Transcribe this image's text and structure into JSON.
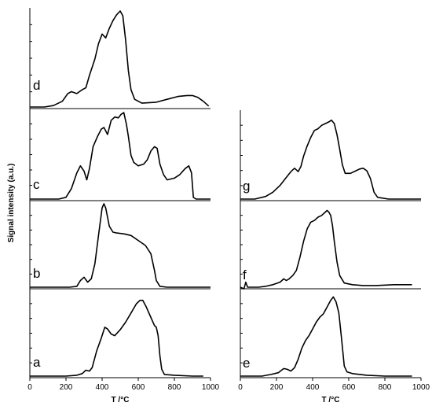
{
  "chart_data": {
    "type": "line",
    "ylabel": "Signal intensity (a.u.)",
    "panels": [
      {
        "column": "left",
        "label": "d",
        "xlim": [
          0,
          1000
        ],
        "points": [
          [
            0,
            0
          ],
          [
            80,
            0
          ],
          [
            130,
            1.5
          ],
          [
            180,
            6
          ],
          [
            210,
            14
          ],
          [
            230,
            16
          ],
          [
            260,
            14
          ],
          [
            290,
            18
          ],
          [
            310,
            20
          ],
          [
            330,
            33
          ],
          [
            360,
            50
          ],
          [
            380,
            66
          ],
          [
            400,
            76
          ],
          [
            420,
            72
          ],
          [
            440,
            82
          ],
          [
            460,
            90
          ],
          [
            480,
            96
          ],
          [
            500,
            100
          ],
          [
            515,
            95
          ],
          [
            530,
            70
          ],
          [
            545,
            38
          ],
          [
            560,
            18
          ],
          [
            580,
            8
          ],
          [
            620,
            4
          ],
          [
            700,
            5
          ],
          [
            760,
            8
          ],
          [
            820,
            11
          ],
          [
            870,
            12
          ],
          [
            900,
            12
          ],
          [
            930,
            10
          ],
          [
            960,
            6
          ],
          [
            990,
            1
          ]
        ]
      },
      {
        "column": "left",
        "label": "c",
        "xlim": [
          0,
          1000
        ],
        "points": [
          [
            0,
            0
          ],
          [
            160,
            0
          ],
          [
            200,
            2
          ],
          [
            230,
            12
          ],
          [
            260,
            30
          ],
          [
            280,
            38
          ],
          [
            300,
            32
          ],
          [
            315,
            22
          ],
          [
            330,
            35
          ],
          [
            350,
            60
          ],
          [
            375,
            72
          ],
          [
            395,
            80
          ],
          [
            410,
            82
          ],
          [
            430,
            74
          ],
          [
            450,
            90
          ],
          [
            470,
            94
          ],
          [
            490,
            93
          ],
          [
            505,
            97
          ],
          [
            520,
            99
          ],
          [
            535,
            85
          ],
          [
            545,
            72
          ],
          [
            560,
            50
          ],
          [
            575,
            42
          ],
          [
            600,
            38
          ],
          [
            630,
            40
          ],
          [
            650,
            45
          ],
          [
            670,
            55
          ],
          [
            690,
            60
          ],
          [
            705,
            58
          ],
          [
            720,
            40
          ],
          [
            740,
            28
          ],
          [
            760,
            22
          ],
          [
            800,
            24
          ],
          [
            830,
            28
          ],
          [
            860,
            35
          ],
          [
            880,
            38
          ],
          [
            895,
            30
          ],
          [
            905,
            2
          ],
          [
            920,
            0
          ],
          [
            1000,
            0
          ]
        ]
      },
      {
        "column": "left",
        "label": "b",
        "xlim": [
          0,
          1000
        ],
        "points": [
          [
            0,
            0
          ],
          [
            220,
            0
          ],
          [
            260,
            1
          ],
          [
            280,
            8
          ],
          [
            300,
            12
          ],
          [
            320,
            6
          ],
          [
            340,
            10
          ],
          [
            360,
            28
          ],
          [
            380,
            62
          ],
          [
            400,
            95
          ],
          [
            410,
            100
          ],
          [
            420,
            95
          ],
          [
            440,
            73
          ],
          [
            460,
            66
          ],
          [
            480,
            65
          ],
          [
            520,
            64
          ],
          [
            560,
            62
          ],
          [
            600,
            56
          ],
          [
            640,
            50
          ],
          [
            670,
            40
          ],
          [
            690,
            20
          ],
          [
            700,
            8
          ],
          [
            720,
            1
          ],
          [
            760,
            0
          ],
          [
            1000,
            0
          ]
        ]
      },
      {
        "column": "left",
        "label": "a",
        "xlim": [
          0,
          1000
        ],
        "points": [
          [
            0,
            0
          ],
          [
            200,
            0
          ],
          [
            260,
            1
          ],
          [
            290,
            3
          ],
          [
            310,
            7
          ],
          [
            330,
            6
          ],
          [
            345,
            10
          ],
          [
            370,
            30
          ],
          [
            395,
            45
          ],
          [
            415,
            58
          ],
          [
            430,
            56
          ],
          [
            450,
            50
          ],
          [
            470,
            48
          ],
          [
            500,
            55
          ],
          [
            530,
            64
          ],
          [
            560,
            75
          ],
          [
            590,
            86
          ],
          [
            610,
            90
          ],
          [
            625,
            90
          ],
          [
            645,
            82
          ],
          [
            665,
            72
          ],
          [
            690,
            60
          ],
          [
            700,
            58
          ],
          [
            710,
            48
          ],
          [
            720,
            24
          ],
          [
            730,
            8
          ],
          [
            745,
            2
          ],
          [
            800,
            1
          ],
          [
            900,
            0
          ],
          [
            960,
            0
          ]
        ]
      },
      {
        "column": "right",
        "label": "g",
        "xlim": [
          0,
          1000
        ],
        "points": [
          [
            0,
            0
          ],
          [
            80,
            0
          ],
          [
            140,
            3
          ],
          [
            180,
            8
          ],
          [
            220,
            16
          ],
          [
            250,
            24
          ],
          [
            280,
            32
          ],
          [
            300,
            36
          ],
          [
            320,
            32
          ],
          [
            335,
            38
          ],
          [
            350,
            50
          ],
          [
            370,
            62
          ],
          [
            390,
            72
          ],
          [
            410,
            80
          ],
          [
            430,
            82
          ],
          [
            450,
            86
          ],
          [
            470,
            88
          ],
          [
            490,
            90
          ],
          [
            505,
            92
          ],
          [
            520,
            88
          ],
          [
            535,
            75
          ],
          [
            550,
            58
          ],
          [
            565,
            40
          ],
          [
            580,
            30
          ],
          [
            610,
            30
          ],
          [
            640,
            33
          ],
          [
            660,
            35
          ],
          [
            680,
            36
          ],
          [
            700,
            33
          ],
          [
            720,
            24
          ],
          [
            740,
            8
          ],
          [
            760,
            2
          ],
          [
            820,
            0
          ],
          [
            1000,
            0
          ]
        ]
      },
      {
        "column": "right",
        "label": "f",
        "xlim": [
          0,
          1000
        ],
        "points": [
          [
            0,
            0
          ],
          [
            20,
            -2
          ],
          [
            30,
            6
          ],
          [
            40,
            0
          ],
          [
            100,
            0
          ],
          [
            140,
            1
          ],
          [
            180,
            3
          ],
          [
            220,
            6
          ],
          [
            240,
            10
          ],
          [
            255,
            8
          ],
          [
            270,
            10
          ],
          [
            290,
            14
          ],
          [
            310,
            20
          ],
          [
            330,
            36
          ],
          [
            350,
            55
          ],
          [
            370,
            70
          ],
          [
            390,
            78
          ],
          [
            410,
            80
          ],
          [
            430,
            84
          ],
          [
            450,
            86
          ],
          [
            470,
            90
          ],
          [
            480,
            92
          ],
          [
            490,
            90
          ],
          [
            500,
            86
          ],
          [
            510,
            74
          ],
          [
            520,
            55
          ],
          [
            535,
            30
          ],
          [
            550,
            14
          ],
          [
            575,
            5
          ],
          [
            620,
            3
          ],
          [
            680,
            2
          ],
          [
            750,
            2
          ],
          [
            850,
            3
          ],
          [
            920,
            3
          ],
          [
            950,
            3
          ]
        ]
      },
      {
        "column": "right",
        "label": "e",
        "xlim": [
          0,
          1000
        ],
        "points": [
          [
            0,
            0
          ],
          [
            120,
            0
          ],
          [
            170,
            2
          ],
          [
            210,
            4
          ],
          [
            240,
            9
          ],
          [
            260,
            8
          ],
          [
            280,
            6
          ],
          [
            300,
            10
          ],
          [
            320,
            20
          ],
          [
            340,
            33
          ],
          [
            360,
            42
          ],
          [
            380,
            48
          ],
          [
            400,
            56
          ],
          [
            420,
            64
          ],
          [
            440,
            70
          ],
          [
            460,
            74
          ],
          [
            480,
            82
          ],
          [
            500,
            90
          ],
          [
            515,
            94
          ],
          [
            530,
            88
          ],
          [
            545,
            75
          ],
          [
            560,
            45
          ],
          [
            575,
            12
          ],
          [
            590,
            5
          ],
          [
            620,
            3
          ],
          [
            700,
            1
          ],
          [
            800,
            0
          ],
          [
            900,
            0
          ],
          [
            950,
            0
          ]
        ]
      }
    ],
    "left_axis": {
      "xlabel": "T /°C",
      "ticks": [
        "0",
        "200",
        "400",
        "600",
        "800",
        "1000"
      ]
    },
    "right_axis": {
      "xlabel": "T /°C",
      "ticks": [
        "0",
        "200",
        "400",
        "600",
        "800",
        "1000"
      ]
    }
  }
}
